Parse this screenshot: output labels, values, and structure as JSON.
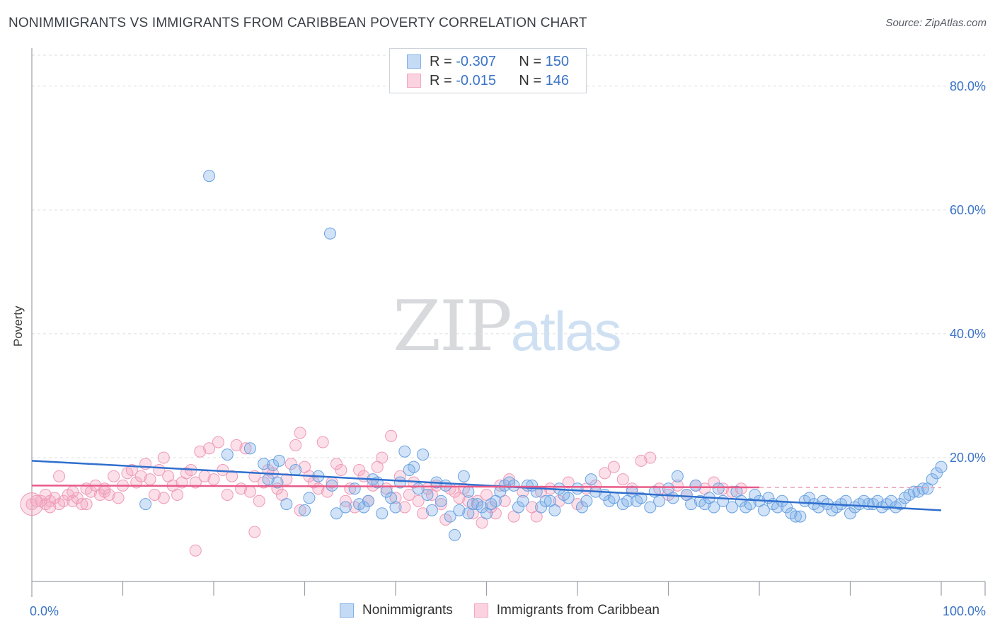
{
  "title": "NONIMMIGRANTS VS IMMIGRANTS FROM CARIBBEAN POVERTY CORRELATION CHART",
  "source": "Source: ZipAtlas.com",
  "watermark": {
    "zip": "ZIP",
    "atlas": "atlas"
  },
  "legend_top": {
    "rows": [
      {
        "r_key": "R =",
        "r_val": "-0.307",
        "n_key": "N =",
        "n_val": "150"
      },
      {
        "r_key": "R =",
        "r_val": "-0.015",
        "n_key": "N =",
        "n_val": "146"
      }
    ]
  },
  "legend_bottom": {
    "blue": "Nonimmigrants",
    "pink": "Immigrants from Caribbean"
  },
  "colors": {
    "blue": "#7fb0e8",
    "blue_line": "#2f6fce",
    "pink": "#f4a6bf",
    "pink_line": "#e85a88",
    "tick": "#3c74c6"
  },
  "chart_data": {
    "type": "scatter",
    "title": "NONIMMIGRANTS VS IMMIGRANTS FROM CARIBBEAN POVERTY CORRELATION CHART",
    "xlabel": "",
    "ylabel": "Poverty",
    "xlim": [
      0,
      100
    ],
    "ylim": [
      0,
      85
    ],
    "x_tick_labels": [
      "0.0%",
      "100.0%"
    ],
    "y_ticks": [
      20,
      40,
      60,
      80
    ],
    "y_tick_labels": [
      "20.0%",
      "40.0%",
      "60.0%",
      "80.0%"
    ],
    "grid": true,
    "legend_position": "top-center",
    "series": [
      {
        "name": "Nonimmigrants",
        "color": "#7fb0e8",
        "trend": {
          "x": [
            0,
            100
          ],
          "y": [
            19.5,
            11.5
          ]
        },
        "points": [
          [
            19.5,
            65.5
          ],
          [
            32.8,
            56.2
          ],
          [
            12.5,
            12.5
          ],
          [
            21.5,
            20.5
          ],
          [
            24,
            21.5
          ],
          [
            25.5,
            19
          ],
          [
            26.5,
            18.8
          ],
          [
            27,
            16
          ],
          [
            26,
            16.5
          ],
          [
            27.2,
            19.5
          ],
          [
            28,
            12.5
          ],
          [
            29,
            18
          ],
          [
            30,
            11.5
          ],
          [
            30.5,
            13.5
          ],
          [
            31.5,
            17
          ],
          [
            33,
            15.5
          ],
          [
            33.5,
            11
          ],
          [
            34.5,
            12
          ],
          [
            35.5,
            15
          ],
          [
            36.5,
            12
          ],
          [
            37.5,
            16.5
          ],
          [
            38,
            16
          ],
          [
            38.5,
            11
          ],
          [
            39.5,
            13.5
          ],
          [
            40,
            12
          ],
          [
            40.5,
            16
          ],
          [
            41,
            21
          ],
          [
            42,
            18.5
          ],
          [
            41.5,
            18
          ],
          [
            42.5,
            15
          ],
          [
            43.5,
            14
          ],
          [
            44,
            11.5
          ],
          [
            45,
            13
          ],
          [
            45.5,
            15.5
          ],
          [
            46,
            10.5
          ],
          [
            46.5,
            7.5
          ],
          [
            47,
            11.5
          ],
          [
            47.5,
            17
          ],
          [
            48,
            14.5
          ],
          [
            48.5,
            12.5
          ],
          [
            49,
            12.5
          ],
          [
            49.5,
            12
          ],
          [
            50,
            11
          ],
          [
            51,
            13
          ],
          [
            51.5,
            14.5
          ],
          [
            52,
            15.5
          ],
          [
            52.5,
            16
          ],
          [
            53,
            15.5
          ],
          [
            53.5,
            12
          ],
          [
            54,
            13
          ],
          [
            54.5,
            15.5
          ],
          [
            55,
            15.5
          ],
          [
            55.5,
            14.5
          ],
          [
            56,
            12
          ],
          [
            57,
            13
          ],
          [
            57.5,
            11.5
          ],
          [
            58,
            15
          ],
          [
            58.5,
            14
          ],
          [
            59,
            13.5
          ],
          [
            60,
            15
          ],
          [
            60.5,
            12
          ],
          [
            61,
            13
          ],
          [
            61.5,
            16.5
          ],
          [
            62,
            14.5
          ],
          [
            63,
            14
          ],
          [
            63.5,
            13
          ],
          [
            64,
            13.5
          ],
          [
            65,
            12.5
          ],
          [
            65.5,
            13
          ],
          [
            66,
            14.5
          ],
          [
            66.5,
            13
          ],
          [
            67,
            13.5
          ],
          [
            68,
            12
          ],
          [
            68.5,
            14.5
          ],
          [
            69,
            13
          ],
          [
            70,
            15
          ],
          [
            70.5,
            13.5
          ],
          [
            71,
            17
          ],
          [
            72,
            14
          ],
          [
            72.5,
            12.5
          ],
          [
            73,
            15.5
          ],
          [
            73.5,
            13
          ],
          [
            74,
            12.5
          ],
          [
            74.5,
            13.5
          ],
          [
            75,
            12
          ],
          [
            75.5,
            15
          ],
          [
            76,
            13
          ],
          [
            77,
            12
          ],
          [
            77.5,
            14.5
          ],
          [
            78,
            13
          ],
          [
            78.5,
            12
          ],
          [
            79,
            12.5
          ],
          [
            79.5,
            14
          ],
          [
            80,
            13
          ],
          [
            80.5,
            11.5
          ],
          [
            81,
            13.5
          ],
          [
            81.5,
            12.5
          ],
          [
            82,
            12
          ],
          [
            82.5,
            13
          ],
          [
            83,
            12
          ],
          [
            83.5,
            11
          ],
          [
            84,
            10.5
          ],
          [
            84.5,
            10.5
          ],
          [
            85,
            13
          ],
          [
            85.5,
            13.5
          ],
          [
            86,
            12.5
          ],
          [
            86.5,
            12
          ],
          [
            87,
            13
          ],
          [
            87.5,
            12.5
          ],
          [
            88,
            11.5
          ],
          [
            88.5,
            12
          ],
          [
            89,
            12.5
          ],
          [
            89.5,
            13
          ],
          [
            90,
            11
          ],
          [
            90.5,
            12
          ],
          [
            91,
            12.5
          ],
          [
            91.5,
            13
          ],
          [
            92,
            12.5
          ],
          [
            92.5,
            12.5
          ],
          [
            93,
            13
          ],
          [
            93.5,
            12
          ],
          [
            94,
            12.5
          ],
          [
            94.5,
            13
          ],
          [
            95,
            12
          ],
          [
            95.5,
            12.5
          ],
          [
            96,
            13.5
          ],
          [
            96.5,
            14
          ],
          [
            97,
            14.5
          ],
          [
            97.5,
            14.5
          ],
          [
            98,
            15
          ],
          [
            98.5,
            15
          ],
          [
            99,
            16.5
          ],
          [
            99.5,
            17.5
          ],
          [
            100,
            18.5
          ],
          [
            36,
            12.5
          ],
          [
            37,
            13
          ],
          [
            43,
            20.5
          ],
          [
            39,
            14.5
          ],
          [
            44.5,
            16
          ],
          [
            50.5,
            12.5
          ],
          [
            48,
            11
          ],
          [
            56.5,
            13
          ]
        ]
      },
      {
        "name": "Immigrants from Caribbean",
        "color": "#f4a6bf",
        "trend": {
          "x": [
            0,
            80
          ],
          "y": [
            15.5,
            15.2
          ]
        },
        "points": [
          [
            0,
            12.5
          ],
          [
            0.5,
            13
          ],
          [
            1,
            13
          ],
          [
            1.5,
            12.5
          ],
          [
            2,
            13
          ],
          [
            2.5,
            13.5
          ],
          [
            3,
            17
          ],
          [
            3.5,
            13
          ],
          [
            4,
            14
          ],
          [
            4.5,
            13
          ],
          [
            5,
            13.5
          ],
          [
            5.5,
            12.5
          ],
          [
            6,
            15
          ],
          [
            6.5,
            14.5
          ],
          [
            7,
            15.5
          ],
          [
            7.5,
            14
          ],
          [
            8,
            14.5
          ],
          [
            8.5,
            14
          ],
          [
            9,
            17
          ],
          [
            9.5,
            13.5
          ],
          [
            10,
            15.5
          ],
          [
            10.5,
            17.5
          ],
          [
            11,
            18
          ],
          [
            11.5,
            16
          ],
          [
            12,
            17
          ],
          [
            12.5,
            19
          ],
          [
            13,
            16.5
          ],
          [
            13.5,
            14
          ],
          [
            14,
            18
          ],
          [
            14.5,
            20
          ],
          [
            15,
            17
          ],
          [
            15.5,
            15.5
          ],
          [
            16,
            14
          ],
          [
            16.5,
            16
          ],
          [
            17,
            17.5
          ],
          [
            17.5,
            18
          ],
          [
            18,
            16
          ],
          [
            18.5,
            21
          ],
          [
            19,
            17
          ],
          [
            19.5,
            21.5
          ],
          [
            20,
            16.5
          ],
          [
            20.5,
            22.5
          ],
          [
            21,
            18
          ],
          [
            21.5,
            14
          ],
          [
            22,
            17
          ],
          [
            22.5,
            22
          ],
          [
            23,
            15
          ],
          [
            23.5,
            21.5
          ],
          [
            24,
            14.5
          ],
          [
            24.5,
            17
          ],
          [
            25,
            13
          ],
          [
            25.5,
            16
          ],
          [
            26,
            18
          ],
          [
            26.5,
            17.5
          ],
          [
            27,
            15
          ],
          [
            27.5,
            14
          ],
          [
            28,
            16.5
          ],
          [
            28.5,
            19
          ],
          [
            29,
            22
          ],
          [
            29.5,
            24
          ],
          [
            30,
            18.5
          ],
          [
            30.5,
            17
          ],
          [
            31,
            16
          ],
          [
            31.5,
            15
          ],
          [
            32,
            22.5
          ],
          [
            32.5,
            14.5
          ],
          [
            33,
            16
          ],
          [
            33.5,
            19
          ],
          [
            34,
            18
          ],
          [
            34.5,
            13
          ],
          [
            35,
            15
          ],
          [
            35.5,
            12
          ],
          [
            36,
            18
          ],
          [
            36.5,
            17
          ],
          [
            37,
            13
          ],
          [
            37.5,
            15.5
          ],
          [
            38,
            18.5
          ],
          [
            38.5,
            20
          ],
          [
            39,
            15
          ],
          [
            39.5,
            23.5
          ],
          [
            40,
            13.5
          ],
          [
            40.5,
            17
          ],
          [
            41,
            12
          ],
          [
            41.5,
            14
          ],
          [
            42,
            16
          ],
          [
            42.5,
            13
          ],
          [
            43,
            11
          ],
          [
            43.5,
            15
          ],
          [
            44,
            14
          ],
          [
            44.5,
            15.5
          ],
          [
            45,
            12.5
          ],
          [
            45.5,
            10
          ],
          [
            46,
            15
          ],
          [
            46.5,
            14.5
          ],
          [
            47,
            13.5
          ],
          [
            47.5,
            15
          ],
          [
            48,
            13
          ],
          [
            48.5,
            11
          ],
          [
            49,
            13
          ],
          [
            49.5,
            9.5
          ],
          [
            50,
            14
          ],
          [
            50.5,
            12
          ],
          [
            51,
            11
          ],
          [
            51.5,
            15.5
          ],
          [
            52,
            13
          ],
          [
            52.5,
            16.5
          ],
          [
            53,
            10.5
          ],
          [
            54,
            14.5
          ],
          [
            55,
            12
          ],
          [
            55.5,
            10.5
          ],
          [
            56,
            14.5
          ],
          [
            57,
            15
          ],
          [
            58,
            13
          ],
          [
            59,
            16
          ],
          [
            60,
            12.5
          ],
          [
            61,
            15
          ],
          [
            62,
            15.5
          ],
          [
            63,
            17.5
          ],
          [
            64,
            18.5
          ],
          [
            65,
            16.5
          ],
          [
            66,
            15
          ],
          [
            67,
            19.5
          ],
          [
            68,
            20
          ],
          [
            69,
            15
          ],
          [
            70,
            14
          ],
          [
            71,
            15.5
          ],
          [
            72,
            14
          ],
          [
            73,
            15.5
          ],
          [
            74,
            15
          ],
          [
            75,
            16
          ],
          [
            76,
            15
          ],
          [
            77,
            14.5
          ],
          [
            78,
            15
          ],
          [
            18,
            5
          ],
          [
            24.5,
            8
          ],
          [
            29.5,
            11.5
          ],
          [
            14.5,
            13.5
          ],
          [
            8,
            15
          ],
          [
            6,
            12.5
          ],
          [
            1.5,
            14
          ],
          [
            3,
            12.5
          ],
          [
            4.5,
            14.5
          ],
          [
            2,
            12
          ]
        ]
      }
    ]
  }
}
